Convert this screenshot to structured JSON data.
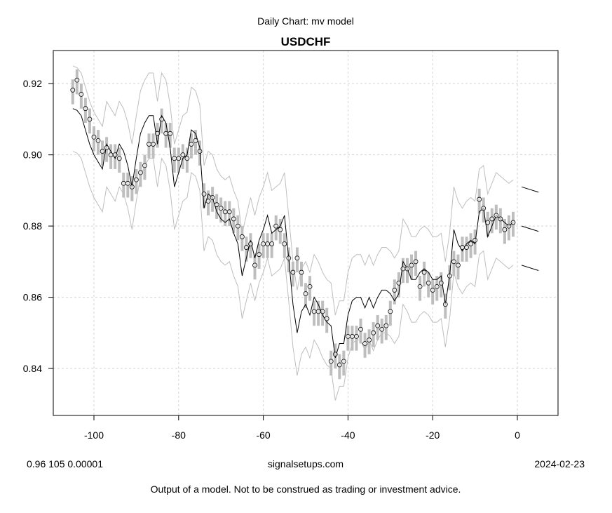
{
  "header": {
    "subtitle": "Daily Chart: mv model",
    "title": "USDCHF"
  },
  "footer": {
    "params": "0.96 105 0.00001",
    "site": "signalsetups.com",
    "date": "2024-02-23",
    "disclaimer": "Output of a model.  Not to be construed as trading or investment advice."
  },
  "chart_data": {
    "type": "line",
    "title": "USDCHF",
    "subtitle": "Daily Chart: mv model",
    "xlabel": "",
    "ylabel": "",
    "xlim": [
      -109.6,
      9.6
    ],
    "ylim": [
      0.8268,
      0.9293
    ],
    "x_start": -105,
    "xticks": [
      -100,
      -80,
      -60,
      -40,
      -20,
      0
    ],
    "xtick_labels": [
      "-100",
      "-80",
      "-60",
      "-40",
      "-20",
      "0"
    ],
    "yticks": [
      0.84,
      0.86,
      0.88,
      0.9,
      0.92
    ],
    "ytick_labels": [
      "0.84",
      "0.86",
      "0.88",
      "0.90",
      "0.92"
    ],
    "grid": true,
    "colors": {
      "bars": "#bebebe",
      "model": "#000000",
      "bands": "#bebebe",
      "grid": "#d3d3d3"
    },
    "close": [
      0.9182,
      0.921,
      0.917,
      0.913,
      0.91,
      0.905,
      0.904,
      0.901,
      0.902,
      0.9,
      0.9,
      0.899,
      0.892,
      0.892,
      0.891,
      0.893,
      0.895,
      0.897,
      0.903,
      0.903,
      0.906,
      0.91,
      0.906,
      0.906,
      0.899,
      0.899,
      0.9,
      0.899,
      0.903,
      0.904,
      0.901,
      0.889,
      0.887,
      0.888,
      0.886,
      0.885,
      0.884,
      0.884,
      0.882,
      0.88,
      0.877,
      0.874,
      0.875,
      0.869,
      0.872,
      0.875,
      0.875,
      0.875,
      0.88,
      0.879,
      0.875,
      0.871,
      0.867,
      0.871,
      0.867,
      0.861,
      0.863,
      0.856,
      0.856,
      0.856,
      0.854,
      0.842,
      0.844,
      0.841,
      0.842,
      0.849,
      0.849,
      0.849,
      0.851,
      0.847,
      0.848,
      0.85,
      0.852,
      0.851,
      0.852,
      0.856,
      0.862,
      0.864,
      0.868,
      0.868,
      0.869,
      0.87,
      0.863,
      0.867,
      0.864,
      0.862,
      0.863,
      0.864,
      0.858,
      0.866,
      0.87,
      0.869,
      0.874,
      0.874,
      0.875,
      0.876,
      0.8875,
      0.885,
      0.881,
      0.882,
      0.883,
      0.882,
      0.879,
      0.88,
      0.881
    ],
    "high": [
      0.9212,
      0.924,
      0.92,
      0.916,
      0.913,
      0.908,
      0.907,
      0.904,
      0.905,
      0.903,
      0.903,
      0.902,
      0.895,
      0.895,
      0.894,
      0.896,
      0.898,
      0.9,
      0.906,
      0.906,
      0.909,
      0.913,
      0.909,
      0.909,
      0.902,
      0.902,
      0.903,
      0.902,
      0.906,
      0.907,
      0.904,
      0.892,
      0.89,
      0.891,
      0.889,
      0.888,
      0.887,
      0.887,
      0.885,
      0.883,
      0.88,
      0.877,
      0.878,
      0.872,
      0.875,
      0.878,
      0.878,
      0.878,
      0.883,
      0.882,
      0.878,
      0.874,
      0.87,
      0.874,
      0.87,
      0.864,
      0.866,
      0.859,
      0.859,
      0.859,
      0.857,
      0.845,
      0.847,
      0.844,
      0.845,
      0.852,
      0.852,
      0.852,
      0.854,
      0.85,
      0.851,
      0.853,
      0.855,
      0.854,
      0.855,
      0.859,
      0.865,
      0.867,
      0.871,
      0.871,
      0.872,
      0.873,
      0.866,
      0.87,
      0.867,
      0.865,
      0.866,
      0.867,
      0.861,
      0.869,
      0.873,
      0.872,
      0.877,
      0.877,
      0.878,
      0.879,
      0.8905,
      0.888,
      0.884,
      0.885,
      0.886,
      0.885,
      0.882,
      0.883,
      0.884
    ],
    "low": [
      0.9142,
      0.917,
      0.913,
      0.909,
      0.906,
      0.901,
      0.9,
      0.897,
      0.898,
      0.896,
      0.896,
      0.895,
      0.888,
      0.888,
      0.887,
      0.889,
      0.891,
      0.893,
      0.899,
      0.899,
      0.902,
      0.906,
      0.902,
      0.902,
      0.895,
      0.895,
      0.896,
      0.895,
      0.899,
      0.9,
      0.897,
      0.885,
      0.883,
      0.884,
      0.882,
      0.881,
      0.88,
      0.88,
      0.878,
      0.876,
      0.873,
      0.87,
      0.871,
      0.865,
      0.868,
      0.871,
      0.871,
      0.871,
      0.876,
      0.875,
      0.871,
      0.867,
      0.863,
      0.867,
      0.863,
      0.857,
      0.859,
      0.852,
      0.852,
      0.852,
      0.85,
      0.838,
      0.84,
      0.837,
      0.838,
      0.845,
      0.845,
      0.845,
      0.847,
      0.843,
      0.844,
      0.846,
      0.848,
      0.847,
      0.848,
      0.852,
      0.858,
      0.86,
      0.864,
      0.864,
      0.865,
      0.866,
      0.859,
      0.863,
      0.86,
      0.858,
      0.859,
      0.86,
      0.854,
      0.862,
      0.866,
      0.865,
      0.87,
      0.87,
      0.871,
      0.872,
      0.8835,
      0.881,
      0.877,
      0.878,
      0.879,
      0.878,
      0.875,
      0.876,
      0.877
    ],
    "model": [
      0.913,
      0.9125,
      0.911,
      0.907,
      0.903,
      0.9,
      0.898,
      0.896,
      0.903,
      0.901,
      0.899,
      0.903,
      0.901,
      0.897,
      0.891,
      0.899,
      0.906,
      0.909,
      0.911,
      0.911,
      0.903,
      0.911,
      0.909,
      0.902,
      0.891,
      0.895,
      0.899,
      0.9,
      0.907,
      0.906,
      0.902,
      0.885,
      0.889,
      0.888,
      0.884,
      0.882,
      0.881,
      0.882,
      0.878,
      0.875,
      0.866,
      0.871,
      0.876,
      0.871,
      0.876,
      0.879,
      0.883,
      0.878,
      0.879,
      0.88,
      0.883,
      0.871,
      0.858,
      0.85,
      0.856,
      0.858,
      0.855,
      0.86,
      0.858,
      0.855,
      0.853,
      0.852,
      0.843,
      0.847,
      0.847,
      0.855,
      0.859,
      0.86,
      0.86,
      0.857,
      0.86,
      0.857,
      0.86,
      0.862,
      0.862,
      0.861,
      0.859,
      0.861,
      0.87,
      0.868,
      0.865,
      0.865,
      0.867,
      0.868,
      0.867,
      0.865,
      0.865,
      0.866,
      0.858,
      0.866,
      0.879,
      0.875,
      0.873,
      0.875,
      0.876,
      0.875,
      0.884,
      0.885,
      0.877,
      0.88,
      0.883,
      0.882,
      0.881,
      0.88,
      0.881
    ],
    "band_halfwidth": 0.012,
    "forecast": {
      "x": [
        1,
        5
      ],
      "upper": [
        0.891,
        0.8895
      ],
      "mid": [
        0.88,
        0.8785
      ],
      "lower": [
        0.869,
        0.8675
      ]
    }
  }
}
